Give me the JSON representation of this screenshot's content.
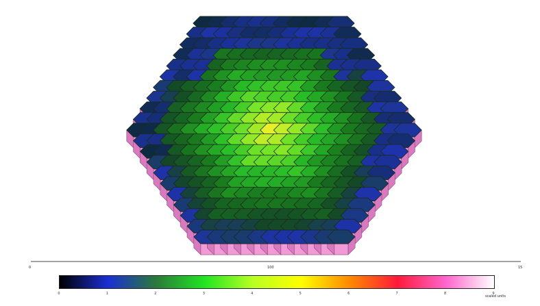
{
  "figure": {
    "colorbar": {
      "stops": [
        "#000000",
        "#1a2fd4",
        "#2a7a3a",
        "#22e522",
        "#b8ff22",
        "#ffff00",
        "#ff8a00",
        "#ff1a3a",
        "#ff66cc",
        "#ffffff"
      ],
      "tick_labels": [
        "0",
        "1",
        "2",
        "3",
        "4",
        "5",
        "6",
        "7",
        "8",
        "9"
      ],
      "unit": "scaled units",
      "top_label": "100",
      "left_end_label": "0",
      "right_end_label": "15"
    },
    "colors": {
      "side_face": "#f29ad8",
      "side_face_dark": "#d979bf",
      "outline": "#1a2a1a",
      "background": "#ffffff"
    }
  }
}
